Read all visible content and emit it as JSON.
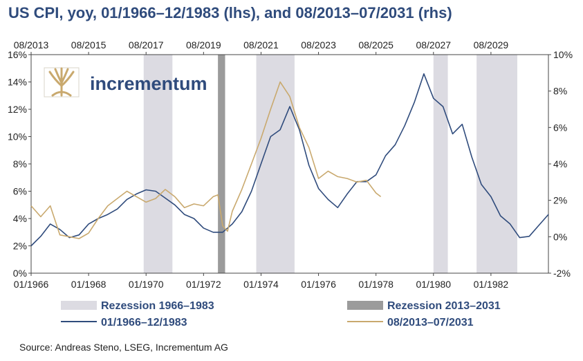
{
  "chart_data": {
    "type": "line",
    "title": "US CPI, yoy, 01/1966–12/1983 (lhs), and 08/2013–07/2031 (rhs)",
    "source": "Source: Andreas Steno, LSEG, Incrementum AG",
    "brand": "incrementum",
    "x_bottom_ticks": [
      "01/1966",
      "01/1968",
      "01/1970",
      "01/1972",
      "01/1974",
      "01/1976",
      "01/1978",
      "01/1980",
      "01/1982"
    ],
    "x_top_ticks": [
      "08/2013",
      "08/2015",
      "08/2017",
      "08/2019",
      "08/2021",
      "08/2023",
      "08/2025",
      "08/2027",
      "08/2029"
    ],
    "y_left": {
      "min": 0,
      "max": 16,
      "step": 2,
      "ticks": [
        "0%",
        "2%",
        "4%",
        "6%",
        "8%",
        "10%",
        "12%",
        "14%",
        "16%"
      ]
    },
    "y_right": {
      "min": -2,
      "max": 10,
      "step": 2,
      "ticks": [
        "-2%",
        "0%",
        "2%",
        "4%",
        "6%",
        "8%",
        "10%"
      ]
    },
    "x_range_months": [
      0,
      216
    ],
    "recessions_1966_1983": [
      [
        47,
        59
      ],
      [
        94,
        110
      ],
      [
        168,
        174
      ],
      [
        186,
        203
      ]
    ],
    "recessions_2013_2031": [
      [
        78,
        81
      ]
    ],
    "legend": [
      {
        "label": "Rezession 1966–1983",
        "kind": "box",
        "color": "#dcdbe2"
      },
      {
        "label": "Rezession 2013–2031",
        "kind": "box",
        "color": "#9b9b9b"
      },
      {
        "label": "01/1966–12/1983",
        "kind": "line",
        "color": "#2f4b7c"
      },
      {
        "label": "08/2013–07/2031",
        "kind": "line",
        "color": "#c9a96e"
      }
    ],
    "series": [
      {
        "name": "01/1966–12/1983",
        "axis": "left",
        "color": "#2f4b7c",
        "x": [
          0,
          4,
          8,
          12,
          16,
          20,
          24,
          28,
          32,
          36,
          40,
          44,
          48,
          52,
          56,
          60,
          64,
          68,
          72,
          76,
          80,
          84,
          88,
          92,
          96,
          100,
          104,
          108,
          112,
          116,
          120,
          124,
          128,
          132,
          136,
          140,
          144,
          148,
          152,
          156,
          160,
          164,
          168,
          172,
          176,
          180,
          184,
          188,
          192,
          196,
          200,
          204,
          208,
          212,
          216
        ],
        "values": [
          2.0,
          2.7,
          3.6,
          3.2,
          2.6,
          2.8,
          3.6,
          4.0,
          4.3,
          4.7,
          5.4,
          5.8,
          6.1,
          6.0,
          5.5,
          5.0,
          4.3,
          4.0,
          3.3,
          3.0,
          3.0,
          3.6,
          4.5,
          6.0,
          8.0,
          10.0,
          10.5,
          12.2,
          10.5,
          7.9,
          6.2,
          5.4,
          4.8,
          5.8,
          6.7,
          6.7,
          7.2,
          8.6,
          9.4,
          10.8,
          12.5,
          14.6,
          12.8,
          12.2,
          10.2,
          10.9,
          8.5,
          6.5,
          5.6,
          4.2,
          3.6,
          2.6,
          2.7,
          3.5,
          4.3
        ]
      },
      {
        "name": "08/2013–07/2031",
        "axis": "right",
        "color": "#c9a96e",
        "x": [
          0,
          4,
          8,
          12,
          16,
          20,
          24,
          28,
          32,
          36,
          40,
          44,
          48,
          52,
          56,
          60,
          64,
          68,
          72,
          76,
          78,
          80,
          82,
          84,
          88,
          92,
          96,
          100,
          104,
          108,
          112,
          116,
          120,
          124,
          128,
          132,
          136,
          140,
          144,
          146
        ],
        "values": [
          1.7,
          1.1,
          1.7,
          0.1,
          0.0,
          -0.1,
          0.2,
          1.0,
          1.7,
          2.1,
          2.5,
          2.2,
          1.9,
          2.1,
          2.6,
          2.2,
          1.6,
          1.8,
          1.7,
          2.2,
          2.3,
          0.6,
          0.3,
          1.4,
          2.6,
          4.0,
          5.4,
          7.0,
          8.5,
          7.7,
          6.0,
          4.9,
          3.2,
          3.6,
          3.3,
          3.2,
          3.0,
          3.1,
          2.4,
          2.2
        ]
      }
    ]
  }
}
